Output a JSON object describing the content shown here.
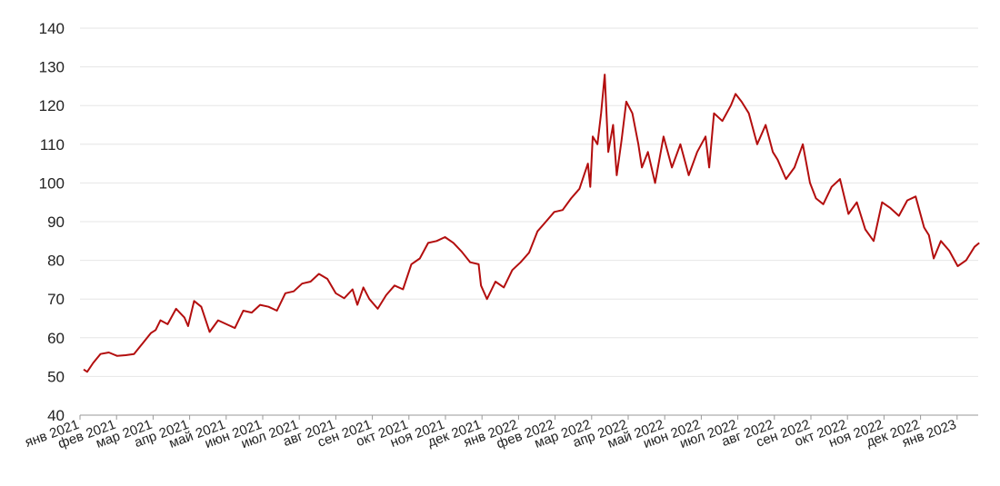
{
  "chart_data": {
    "type": "line",
    "title": "",
    "xlabel": "",
    "ylabel": "",
    "ylim": [
      40,
      140
    ],
    "y_ticks": [
      40,
      50,
      60,
      70,
      80,
      90,
      100,
      110,
      120,
      130,
      140
    ],
    "grid": true,
    "legend": "none",
    "x_tick_labels": [
      "янв 2021",
      "фев 2021",
      "мар 2021",
      "апр 2021",
      "май 2021",
      "июн 2021",
      "июл 2021",
      "авг 2021",
      "сен 2021",
      "окт 2021",
      "ноя 2021",
      "дек 2021",
      "янв 2022",
      "фев 2022",
      "мар 2022",
      "апр 2022",
      "май 2022",
      "июн 2022",
      "июл 2022",
      "авг 2022",
      "сен 2022",
      "окт 2022",
      "ноя 2022",
      "дек 2022",
      "янв 2023"
    ],
    "line_color": "#b30e0e",
    "series": [
      {
        "x": [
          "2021-01-04",
          "2021-01-07",
          "2021-01-12",
          "2021-01-18",
          "2021-01-25",
          "2021-02-01",
          "2021-02-08",
          "2021-02-15",
          "2021-02-22",
          "2021-03-01",
          "2021-03-05",
          "2021-03-09",
          "2021-03-15",
          "2021-03-22",
          "2021-03-29",
          "2021-04-01",
          "2021-04-06",
          "2021-04-12",
          "2021-04-19",
          "2021-04-26",
          "2021-05-03",
          "2021-05-10",
          "2021-05-17",
          "2021-05-24",
          "2021-05-31",
          "2021-06-07",
          "2021-06-14",
          "2021-06-21",
          "2021-06-28",
          "2021-07-05",
          "2021-07-12",
          "2021-07-19",
          "2021-07-26",
          "2021-08-02",
          "2021-08-09",
          "2021-08-16",
          "2021-08-20",
          "2021-08-25",
          "2021-08-30",
          "2021-09-06",
          "2021-09-13",
          "2021-09-20",
          "2021-09-27",
          "2021-10-04",
          "2021-10-11",
          "2021-10-18",
          "2021-10-25",
          "2021-11-01",
          "2021-11-08",
          "2021-11-15",
          "2021-11-22",
          "2021-11-29",
          "2021-12-01",
          "2021-12-06",
          "2021-12-13",
          "2021-12-20",
          "2021-12-27",
          "2022-01-03",
          "2022-01-10",
          "2022-01-17",
          "2022-01-24",
          "2022-01-31",
          "2022-02-07",
          "2022-02-14",
          "2022-02-21",
          "2022-02-28",
          "2022-03-02",
          "2022-03-04",
          "2022-03-08",
          "2022-03-11",
          "2022-03-14",
          "2022-03-17",
          "2022-03-21",
          "2022-03-24",
          "2022-03-28",
          "2022-04-01",
          "2022-04-06",
          "2022-04-11",
          "2022-04-14",
          "2022-04-19",
          "2022-04-25",
          "2022-05-02",
          "2022-05-09",
          "2022-05-16",
          "2022-05-23",
          "2022-05-30",
          "2022-06-06",
          "2022-06-09",
          "2022-06-13",
          "2022-06-20",
          "2022-06-27",
          "2022-07-01",
          "2022-07-06",
          "2022-07-12",
          "2022-07-19",
          "2022-07-26",
          "2022-08-01",
          "2022-08-05",
          "2022-08-12",
          "2022-08-19",
          "2022-08-26",
          "2022-09-01",
          "2022-09-06",
          "2022-09-12",
          "2022-09-19",
          "2022-09-26",
          "2022-10-03",
          "2022-10-10",
          "2022-10-17",
          "2022-10-24",
          "2022-10-31",
          "2022-11-07",
          "2022-11-14",
          "2022-11-21",
          "2022-11-28",
          "2022-12-05",
          "2022-12-09",
          "2022-12-13",
          "2022-12-19",
          "2022-12-26",
          "2023-01-02",
          "2023-01-09",
          "2023-01-16",
          "2023-01-20"
        ],
        "y": [
          51.8,
          51.2,
          53.5,
          55.8,
          56.2,
          55.3,
          55.5,
          55.8,
          58.5,
          61.2,
          62.0,
          64.5,
          63.5,
          67.5,
          65.2,
          63.0,
          69.5,
          68.0,
          61.5,
          64.5,
          63.5,
          62.5,
          67.0,
          66.5,
          68.5,
          68.0,
          67.0,
          71.5,
          72.0,
          74.0,
          74.5,
          76.5,
          75.2,
          71.5,
          70.2,
          72.5,
          68.5,
          73.0,
          70.0,
          67.5,
          71.0,
          73.5,
          72.5,
          79.0,
          80.5,
          84.5,
          85.0,
          86.0,
          84.5,
          82.2,
          79.5,
          79.0,
          73.5,
          70.0,
          74.5,
          73.0,
          77.5,
          79.5,
          82.0,
          87.5,
          90.0,
          92.5,
          93.0,
          96.0,
          98.5,
          105.0,
          99.0,
          112.0,
          110.0,
          118.0,
          128.0,
          108.0,
          115.0,
          102.0,
          111.0,
          121.0,
          118.0,
          110.0,
          104.0,
          108.0,
          100.0,
          112.0,
          104.0,
          110.0,
          102.0,
          108.0,
          112.0,
          104.0,
          118.0,
          116.0,
          120.0,
          123.0,
          121.0,
          118.0,
          110.0,
          115.0,
          108.0,
          106.0,
          101.0,
          104.0,
          110.0,
          100.0,
          96.0,
          94.5,
          99.0,
          101.0,
          92.0,
          95.0,
          88.0,
          85.0,
          95.0,
          93.5,
          91.5,
          95.5,
          96.5,
          88.5,
          86.5,
          80.5,
          85.0,
          82.5,
          78.5,
          80.0,
          83.5,
          84.5
        ]
      }
    ]
  }
}
